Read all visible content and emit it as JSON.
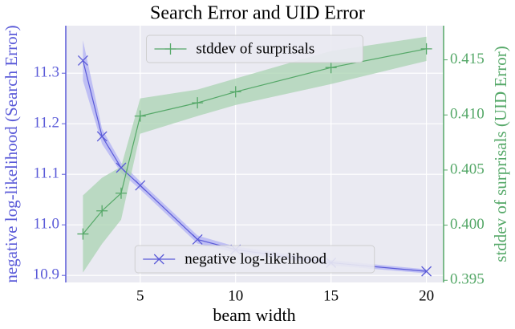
{
  "chart_data": {
    "type": "line",
    "title": "Search Error and UID Error",
    "xlabel": "beam width",
    "ylabel": "negative log-likelihood (Search Error)",
    "y2label": "stddev of surprisals (UID Error)",
    "x": [
      2,
      3,
      4,
      5,
      8,
      10,
      15,
      20
    ],
    "xlim": [
      1.1,
      20.9
    ],
    "xticks": [
      5,
      10,
      15,
      20
    ],
    "ylim": [
      10.886,
      11.394
    ],
    "yticks": [
      {
        "value": 10.9,
        "label": "10.9"
      },
      {
        "value": 11.0,
        "label": "11.0"
      },
      11.1,
      11.2,
      11.3
    ],
    "y2lim": [
      0.3948,
      0.4181
    ],
    "y2ticks": [
      0.395,
      {
        "value": 0.4,
        "label": "0.400"
      },
      0.405,
      {
        "value": 0.41,
        "label": "0.410"
      },
      0.415
    ],
    "grid": true,
    "series": [
      {
        "name": "negative log-likelihood",
        "color": "#5a5ad8",
        "band_color": "#b0b0f4",
        "marker": "x",
        "axis": "y",
        "legend": "lower center",
        "values": [
          11.325,
          11.175,
          11.113,
          11.078,
          10.971,
          10.951,
          10.925,
          10.908
        ],
        "errors": [
          0.04,
          0.015,
          0.01,
          0.008,
          0.008,
          0.006,
          0.005,
          0.004
        ]
      },
      {
        "name": "stddev of surprisals",
        "color": "#55a868",
        "band_color": "#a9d3b2",
        "marker": "+",
        "axis": "y2",
        "legend": "upper center",
        "values": [
          0.3992,
          0.4013,
          0.4029,
          0.4099,
          0.4111,
          0.4121,
          0.4143,
          0.416
        ],
        "errors": [
          0.0035,
          0.003,
          0.0024,
          0.0016,
          0.0012,
          0.0012,
          0.0015,
          0.0011
        ]
      }
    ]
  }
}
